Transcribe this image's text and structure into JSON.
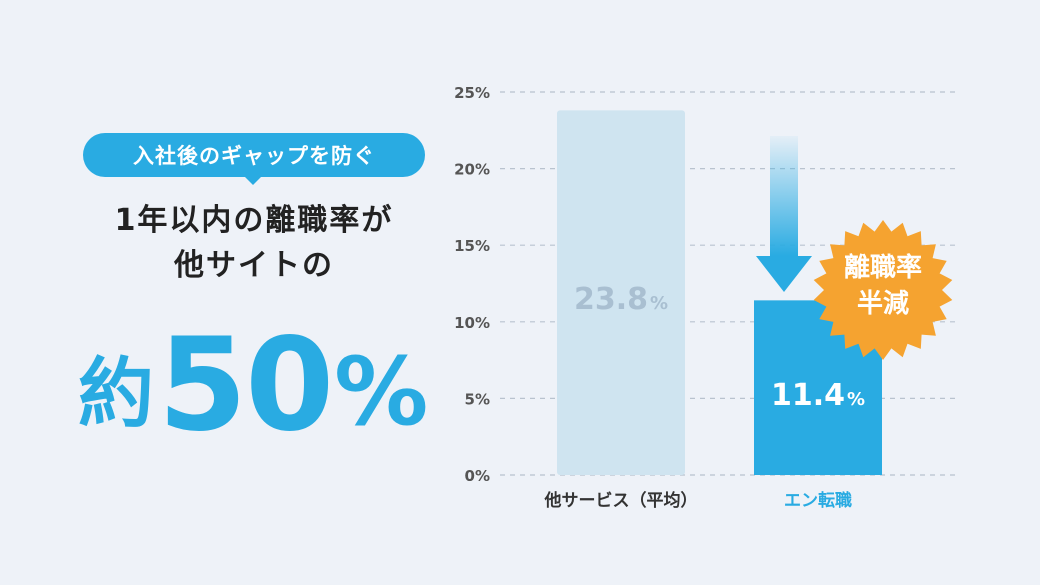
{
  "left_panel": {
    "pill_label": "入社後のギャップを防ぐ",
    "headline_line1": "1年以内の離職率が",
    "headline_line2": "他サイトの",
    "big_prefix": "約",
    "big_number": "50",
    "big_unit": "%"
  },
  "badge": {
    "line1": "離職率",
    "line2": "半減",
    "color": "#f5a330"
  },
  "colors": {
    "accent": "#29abe2",
    "bar_other": "#cfe4f0",
    "bar_label_other": "#a9bfd1"
  },
  "chart_data": {
    "type": "bar",
    "categories": [
      "他サービス（平均）",
      "エン転職"
    ],
    "values": [
      23.8,
      11.4
    ],
    "value_labels": [
      {
        "number": "23.8",
        "unit": "%"
      },
      {
        "number": "11.4",
        "unit": "%"
      }
    ],
    "yticks": [
      "0%",
      "5%",
      "10%",
      "15%",
      "20%",
      "25%"
    ],
    "ytick_values": [
      0,
      5,
      10,
      15,
      20,
      25
    ],
    "ylim": [
      0,
      25
    ],
    "grid": true,
    "bar_colors": [
      "#cfe4f0",
      "#29abe2"
    ],
    "category_colors": [
      "#333333",
      "#29abe2"
    ]
  }
}
